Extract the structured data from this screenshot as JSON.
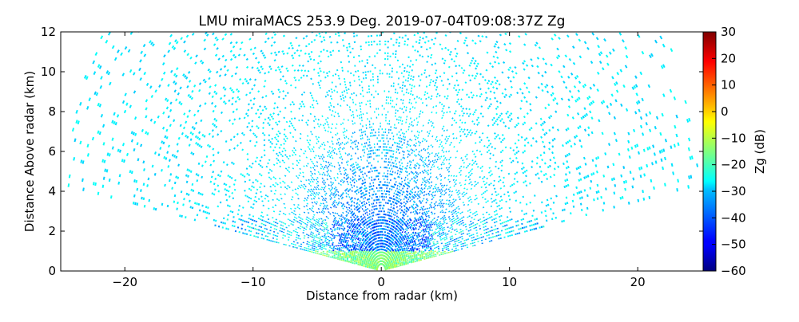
{
  "chart_data": {
    "type": "heatmap",
    "title": "LMU miraMACS 253.9 Deg. 2019-07-04T09:08:37Z  Zg",
    "xlabel": "Distance from radar (km)",
    "ylabel": "Distance Above radar  (km)",
    "xlim": [
      -25,
      25.1
    ],
    "ylim": [
      0,
      12
    ],
    "x_ticks": [
      -20,
      -10,
      0,
      10,
      20
    ],
    "y_ticks": [
      0,
      2,
      4,
      6,
      8,
      10,
      12
    ],
    "colorbar": {
      "label": "Zg (dB)",
      "range": [
        -60,
        30
      ],
      "ticks": [
        30,
        20,
        10,
        0,
        -10,
        -20,
        -30,
        -40,
        -50,
        -60
      ],
      "colormap": "jet"
    },
    "grid": false,
    "scan": {
      "elevation_min_deg": 10,
      "elevation_max_deg": 170,
      "max_range_km": 25,
      "structure": [
        {
          "region": "noise floor aloft",
          "zg_db": -28
        },
        {
          "region": "central weak echoes 2-6 km",
          "zg_db": -42
        },
        {
          "region": "near-surface layer below 1 km",
          "zg_db": -15
        },
        {
          "region": "low layer 1-2.5 km",
          "zg_db": -30
        }
      ]
    }
  }
}
